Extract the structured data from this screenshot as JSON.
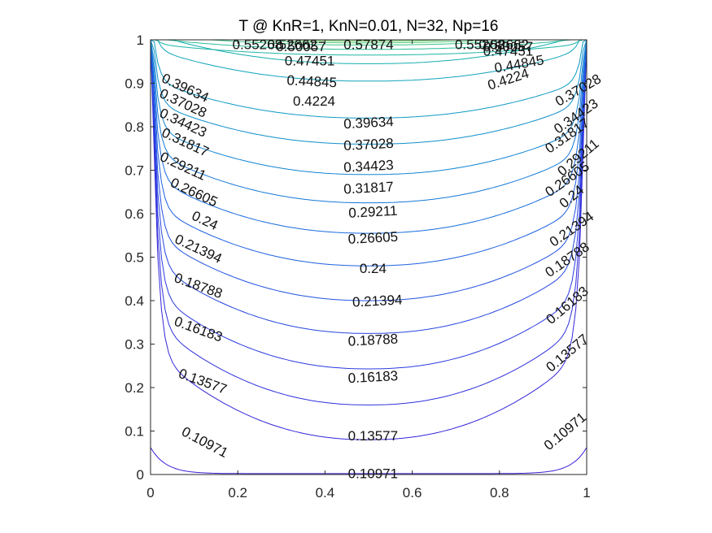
{
  "chart_data": {
    "type": "contour",
    "title": "T @ KnR=1, KnN=0.01, N=32, Np=16",
    "xlabel": "",
    "ylabel": "",
    "xlim": [
      0,
      1
    ],
    "ylim": [
      0,
      1
    ],
    "xticks": [
      "0",
      "0.2",
      "0.4",
      "0.6",
      "0.8",
      "1"
    ],
    "yticks": [
      "0",
      "0.1",
      "0.2",
      "0.3",
      "0.4",
      "0.5",
      "0.6",
      "0.7",
      "0.8",
      "0.9",
      "1"
    ],
    "grid": false,
    "levels": [
      {
        "value": 0.10971,
        "label": "0.10971",
        "y_center": 0.002,
        "color": "#3b1ed6"
      },
      {
        "value": 0.13577,
        "label": "0.13577",
        "y_center": 0.08,
        "color": "#3526d8"
      },
      {
        "value": 0.16183,
        "label": "0.16183",
        "y_center": 0.16,
        "color": "#3030dc"
      },
      {
        "value": 0.18788,
        "label": "0.18788",
        "y_center": 0.243,
        "color": "#2c3adf"
      },
      {
        "value": 0.21394,
        "label": "0.21394",
        "y_center": 0.3245,
        "color": "#2646e1"
      },
      {
        "value": 0.24,
        "label": "0.24",
        "y_center": 0.4,
        "color": "#2152e2"
      },
      {
        "value": 0.26605,
        "label": "0.26605",
        "y_center": 0.48,
        "color": "#1c60e0"
      },
      {
        "value": 0.29211,
        "label": "0.29211",
        "y_center": 0.555,
        "color": "#176cdc"
      },
      {
        "value": 0.31817,
        "label": "0.31817",
        "y_center": 0.625,
        "color": "#1478d8"
      },
      {
        "value": 0.34423,
        "label": "0.34423",
        "y_center": 0.69,
        "color": "#1184d2"
      },
      {
        "value": 0.37028,
        "label": "0.37028",
        "y_center": 0.76,
        "color": "#0f8fcc"
      },
      {
        "value": 0.39634,
        "label": "0.39634",
        "y_center": 0.82,
        "color": "#0e9ac4"
      },
      {
        "value": 0.4224,
        "label": "0.4224",
        "y_center": 0.905,
        "color": "#10a4bb"
      },
      {
        "value": 0.44845,
        "label": "0.44845",
        "y_center": 0.945,
        "color": "#14adb0"
      },
      {
        "value": 0.47451,
        "label": "0.47451",
        "y_center": 0.965,
        "color": "#1db5a4"
      },
      {
        "value": 0.50057,
        "label": "0.50057",
        "y_center": 0.978,
        "color": "#2bbd96"
      },
      {
        "value": 0.52662,
        "label": "0.52662",
        "y_center": 0.988,
        "color": "#3bc486"
      },
      {
        "value": 0.55268,
        "label": "0.55268",
        "y_center": 0.993,
        "color": "#50c873"
      },
      {
        "value": 0.57874,
        "label": "0.57874",
        "y_center": 0.997,
        "color": "#66cc5e"
      }
    ],
    "labels_visible": [
      {
        "label": "0.55268",
        "x": 0.245,
        "y": 0.99,
        "angle": 0
      },
      {
        "label": "0.52662",
        "x": 0.325,
        "y": 0.99,
        "angle": 0
      },
      {
        "label": "0.50057",
        "x": 0.345,
        "y": 0.985,
        "angle": 0
      },
      {
        "label": "0.57874",
        "x": 0.5,
        "y": 0.99,
        "angle": 0
      },
      {
        "label": "0.55268",
        "x": 0.755,
        "y": 0.99,
        "angle": 0
      },
      {
        "label": "0.52662",
        "x": 0.81,
        "y": 0.99,
        "angle": 0
      },
      {
        "label": "0.50057",
        "x": 0.82,
        "y": 0.985,
        "angle": 0
      },
      {
        "label": "0.47451",
        "x": 0.82,
        "y": 0.975,
        "angle": 0
      },
      {
        "label": "0.47451",
        "x": 0.365,
        "y": 0.952,
        "angle": 0
      },
      {
        "label": "0.44845",
        "x": 0.845,
        "y": 0.945,
        "angle": -10
      },
      {
        "label": "0.44845",
        "x": 0.37,
        "y": 0.905,
        "angle": 3
      },
      {
        "label": "0.4224",
        "x": 0.82,
        "y": 0.91,
        "angle": -18
      },
      {
        "label": "0.4224",
        "x": 0.375,
        "y": 0.86,
        "angle": 0
      },
      {
        "label": "0.39634",
        "x": 0.08,
        "y": 0.89,
        "angle": 25
      },
      {
        "label": "0.39634",
        "x": 0.5,
        "y": 0.81,
        "angle": -3
      },
      {
        "label": "0.37028",
        "x": 0.075,
        "y": 0.855,
        "angle": 25
      },
      {
        "label": "0.37028",
        "x": 0.5,
        "y": 0.76,
        "angle": -3
      },
      {
        "label": "0.37028",
        "x": 0.98,
        "y": 0.885,
        "angle": -30
      },
      {
        "label": "0.34423",
        "x": 0.075,
        "y": 0.81,
        "angle": 25
      },
      {
        "label": "0.34423",
        "x": 0.5,
        "y": 0.71,
        "angle": -3
      },
      {
        "label": "0.34423",
        "x": 0.975,
        "y": 0.825,
        "angle": -35
      },
      {
        "label": "0.31817",
        "x": 0.08,
        "y": 0.765,
        "angle": 25
      },
      {
        "label": "0.31817",
        "x": 0.5,
        "y": 0.66,
        "angle": -3
      },
      {
        "label": "0.31817",
        "x": 0.955,
        "y": 0.78,
        "angle": -35
      },
      {
        "label": "0.29211",
        "x": 0.075,
        "y": 0.71,
        "angle": 25
      },
      {
        "label": "0.29211",
        "x": 0.51,
        "y": 0.605,
        "angle": -3
      },
      {
        "label": "0.29211",
        "x": 0.98,
        "y": 0.73,
        "angle": -40
      },
      {
        "label": "0.26605",
        "x": 0.1,
        "y": 0.65,
        "angle": 25
      },
      {
        "label": "0.26605",
        "x": 0.51,
        "y": 0.545,
        "angle": -3
      },
      {
        "label": "0.26605",
        "x": 0.955,
        "y": 0.68,
        "angle": -35
      },
      {
        "label": "0.24",
        "x": 0.125,
        "y": 0.585,
        "angle": 25
      },
      {
        "label": "0.24",
        "x": 0.51,
        "y": 0.475,
        "angle": 0
      },
      {
        "label": "0.24",
        "x": 0.965,
        "y": 0.64,
        "angle": -40
      },
      {
        "label": "0.21394",
        "x": 0.11,
        "y": 0.52,
        "angle": 25
      },
      {
        "label": "0.21394",
        "x": 0.52,
        "y": 0.4,
        "angle": -3
      },
      {
        "label": "0.21394",
        "x": 0.965,
        "y": 0.565,
        "angle": -35
      },
      {
        "label": "0.18788",
        "x": 0.11,
        "y": 0.435,
        "angle": 20
      },
      {
        "label": "0.18788",
        "x": 0.51,
        "y": 0.31,
        "angle": -3
      },
      {
        "label": "0.18788",
        "x": 0.955,
        "y": 0.495,
        "angle": -35
      },
      {
        "label": "0.16183",
        "x": 0.11,
        "y": 0.335,
        "angle": 20
      },
      {
        "label": "0.16183",
        "x": 0.51,
        "y": 0.225,
        "angle": -3
      },
      {
        "label": "0.16183",
        "x": 0.955,
        "y": 0.39,
        "angle": -40
      },
      {
        "label": "0.13577",
        "x": 0.12,
        "y": 0.215,
        "angle": 20
      },
      {
        "label": "0.13577",
        "x": 0.51,
        "y": 0.09,
        "angle": 0
      },
      {
        "label": "0.13577",
        "x": 0.955,
        "y": 0.28,
        "angle": -40
      },
      {
        "label": "0.10971",
        "x": 0.125,
        "y": 0.075,
        "angle": 28
      },
      {
        "label": "0.10971",
        "x": 0.51,
        "y": 0.003,
        "angle": 0
      },
      {
        "label": "0.10971",
        "x": 0.95,
        "y": 0.1,
        "angle": -40
      }
    ]
  }
}
